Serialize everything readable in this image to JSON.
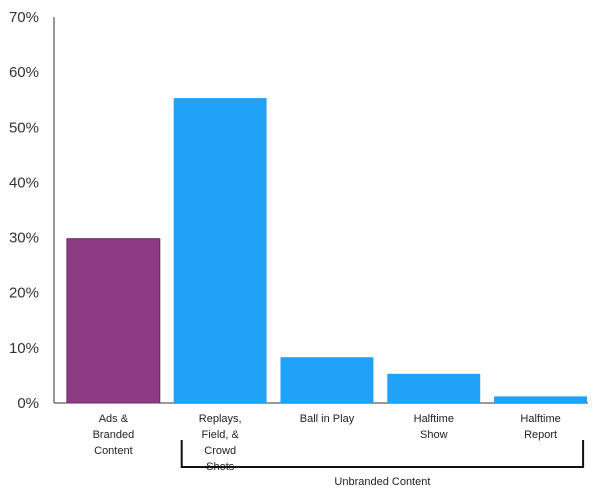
{
  "chart_data": {
    "type": "bar",
    "categories": [
      [
        "Ads &",
        "Branded",
        "Content"
      ],
      [
        "Replays,",
        "Field, &",
        "Crowd",
        "Shots"
      ],
      [
        "Ball in Play"
      ],
      [
        "Halftime",
        "Show"
      ],
      [
        "Halftime",
        "Report"
      ]
    ],
    "values": [
      29.8,
      55.3,
      8.3,
      5.3,
      1.2
    ],
    "bar_colors": [
      "#8e3b86",
      "#1ea1f7",
      "#1ea1f7",
      "#1ea1f7",
      "#1ea1f7"
    ],
    "ylim": [
      0,
      70
    ],
    "yticks": [
      {
        "value": 0,
        "label": "0%"
      },
      {
        "value": 10,
        "label": "10%"
      },
      {
        "value": 20,
        "label": "20%"
      },
      {
        "value": 30,
        "label": "30%"
      },
      {
        "value": 40,
        "label": "40%"
      },
      {
        "value": 50,
        "label": "50%"
      },
      {
        "value": 60,
        "label": "60%"
      },
      {
        "value": 70,
        "label": "70%"
      }
    ],
    "grid": false,
    "group_annotation": {
      "label": "Unbranded Content",
      "from_category": 1,
      "to_category": 4
    }
  }
}
